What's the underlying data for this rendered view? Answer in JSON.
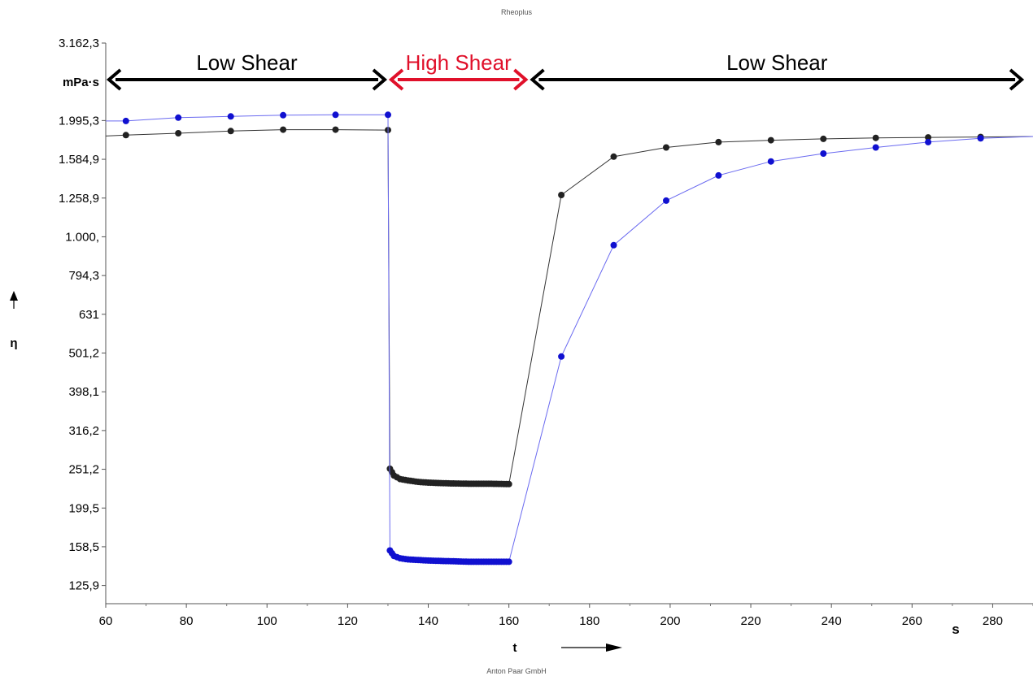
{
  "colors": {
    "series_black": "#222222",
    "series_blue": "#1010d0",
    "line_blue": "#6a6af0",
    "arrow_black": "#000000",
    "arrow_red": "#e0102a",
    "text_red": "#e0102a"
  },
  "chart_data": {
    "type": "line",
    "title": "Rheoplus",
    "footer": "Anton Paar GmbH",
    "xlabel": "t",
    "x_unit": "s",
    "ylabel": "η",
    "y_unit": "mPa·s",
    "x_scale": "linear",
    "y_scale": "log",
    "xlim": [
      60,
      290
    ],
    "ylim": [
      113,
      3162.3
    ],
    "x_ticks": [
      60,
      80,
      100,
      120,
      140,
      160,
      180,
      200,
      220,
      240,
      260,
      280
    ],
    "y_ticks": [
      {
        "value": 3162.3,
        "label": "3.162,3"
      },
      {
        "value": 1995.3,
        "label": "1.995,3"
      },
      {
        "value": 1584.9,
        "label": "1.584,9"
      },
      {
        "value": 1258.9,
        "label": "1.258,9"
      },
      {
        "value": 1000,
        "label": "1.000,"
      },
      {
        "value": 794.3,
        "label": "794,3"
      },
      {
        "value": 631,
        "label": "631"
      },
      {
        "value": 501.2,
        "label": "501,2"
      },
      {
        "value": 398.1,
        "label": "398,1"
      },
      {
        "value": 316.2,
        "label": "316,2"
      },
      {
        "value": 251.2,
        "label": "251,2"
      },
      {
        "value": 199.5,
        "label": "199,5"
      },
      {
        "value": 158.5,
        "label": "158,5"
      },
      {
        "value": 125.9,
        "label": "125,9"
      }
    ],
    "grid": false,
    "series": [
      {
        "color": "black",
        "x": [
          65,
          78,
          91,
          104,
          117,
          130,
          130.5,
          131.5,
          133,
          135,
          137.5,
          140,
          145,
          150,
          155,
          160,
          173,
          186,
          199,
          212,
          225,
          238,
          251,
          264,
          277
        ],
        "y": [
          1830,
          1850,
          1875,
          1890,
          1890,
          1885,
          252,
          242,
          237,
          235,
          233,
          232,
          231,
          230.5,
          230.5,
          230,
          1282,
          1610,
          1700,
          1755,
          1775,
          1790,
          1800,
          1805,
          1810
        ],
        "extend": [
          [
            60,
            1820
          ],
          [
            290,
            1815
          ]
        ]
      },
      {
        "color": "blue",
        "x": [
          65,
          78,
          91,
          104,
          117,
          130,
          130.5,
          131.5,
          133,
          135,
          137.5,
          140,
          145,
          150,
          155,
          160,
          173,
          186,
          199,
          212,
          225,
          238,
          251,
          264,
          277
        ],
        "y": [
          1990,
          2030,
          2045,
          2060,
          2065,
          2065,
          155,
          150,
          148,
          147,
          146.5,
          146,
          145.5,
          145,
          145,
          145,
          491,
          951,
          1240,
          1440,
          1565,
          1640,
          1700,
          1755,
          1795
        ],
        "extend": [
          [
            60,
            1990
          ],
          [
            290,
            1815
          ]
        ]
      }
    ],
    "annotations": [
      {
        "text": "Low Shear",
        "color": "black",
        "x_from": 60,
        "x_to": 130
      },
      {
        "text": "High Shear",
        "color": "red",
        "x_from": 130,
        "x_to": 165
      },
      {
        "text": "Low Shear",
        "color": "black",
        "x_from": 165,
        "x_to": 288
      }
    ]
  }
}
